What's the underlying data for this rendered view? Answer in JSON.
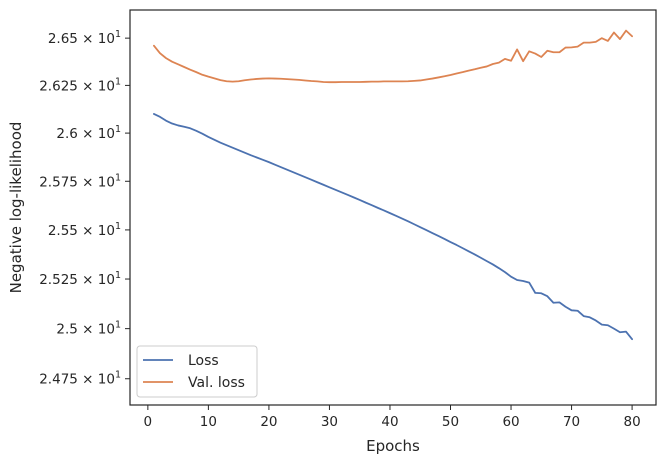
{
  "chart_data": {
    "type": "line",
    "xlabel": "Epochs",
    "ylabel": "Negative log-likelihood",
    "xlim": [
      -2.95,
      83.95
    ],
    "ylim": [
      24.62,
      26.65
    ],
    "y_scale": "log",
    "grid": false,
    "legend_position": "lower-left",
    "x_ticks": [
      0,
      10,
      20,
      30,
      40,
      50,
      60,
      70,
      80
    ],
    "y_ticks": [
      {
        "value": 24.75,
        "mantissa": "2.475"
      },
      {
        "value": 25.0,
        "mantissa": "2.5"
      },
      {
        "value": 25.25,
        "mantissa": "2.525"
      },
      {
        "value": 25.5,
        "mantissa": "2.55"
      },
      {
        "value": 25.75,
        "mantissa": "2.575"
      },
      {
        "value": 26.0,
        "mantissa": "2.6"
      },
      {
        "value": 26.25,
        "mantissa": "2.625"
      },
      {
        "value": 26.5,
        "mantissa": "2.65"
      }
    ],
    "y_tick_base": "× 10",
    "y_tick_exponent": "1",
    "x": [
      1,
      2,
      3,
      4,
      5,
      6,
      7,
      8,
      9,
      10,
      11,
      12,
      13,
      14,
      15,
      16,
      17,
      18,
      19,
      20,
      21,
      22,
      23,
      24,
      25,
      26,
      27,
      28,
      29,
      30,
      31,
      32,
      33,
      34,
      35,
      36,
      37,
      38,
      39,
      40,
      41,
      42,
      43,
      44,
      45,
      46,
      47,
      48,
      49,
      50,
      51,
      52,
      53,
      54,
      55,
      56,
      57,
      58,
      59,
      60,
      61,
      62,
      63,
      64,
      65,
      66,
      67,
      68,
      69,
      70,
      71,
      72,
      73,
      74,
      75,
      76,
      77,
      78,
      79,
      80
    ],
    "series": [
      {
        "name": "Loss",
        "color": "#4c72b0",
        "values": [
          26.1,
          26.085,
          26.065,
          26.05,
          26.04,
          26.033,
          26.025,
          26.012,
          25.997,
          25.98,
          25.965,
          25.95,
          25.937,
          25.924,
          25.911,
          25.898,
          25.885,
          25.873,
          25.861,
          25.849,
          25.836,
          25.823,
          25.81,
          25.797,
          25.784,
          25.771,
          25.758,
          25.745,
          25.732,
          25.719,
          25.706,
          25.693,
          25.68,
          25.667,
          25.654,
          25.64,
          25.627,
          25.613,
          25.6,
          25.586,
          25.572,
          25.558,
          25.544,
          25.529,
          25.514,
          25.499,
          25.484,
          25.469,
          25.454,
          25.438,
          25.423,
          25.407,
          25.391,
          25.375,
          25.358,
          25.341,
          25.324,
          25.305,
          25.285,
          25.262,
          25.245,
          25.24,
          25.232,
          25.18,
          25.178,
          25.163,
          25.13,
          25.132,
          25.11,
          25.092,
          25.09,
          25.063,
          25.057,
          25.041,
          25.02,
          25.017,
          25.0,
          24.982,
          24.985,
          24.947
        ]
      },
      {
        "name": "Val. loss",
        "color": "#dd8452",
        "values": [
          26.46,
          26.42,
          26.394,
          26.375,
          26.361,
          26.347,
          26.333,
          26.32,
          26.306,
          26.296,
          26.287,
          26.278,
          26.272,
          26.27,
          26.272,
          26.277,
          26.281,
          26.284,
          26.286,
          26.287,
          26.286,
          26.285,
          26.283,
          26.281,
          26.279,
          26.276,
          26.273,
          26.271,
          26.268,
          26.267,
          26.267,
          26.268,
          26.268,
          26.268,
          26.268,
          26.269,
          26.27,
          26.27,
          26.271,
          26.271,
          26.271,
          26.271,
          26.272,
          26.274,
          26.276,
          26.281,
          26.286,
          26.292,
          26.298,
          26.305,
          26.313,
          26.32,
          26.328,
          26.335,
          26.343,
          26.35,
          26.363,
          26.37,
          26.39,
          26.38,
          26.44,
          26.378,
          26.43,
          26.418,
          26.4,
          26.433,
          26.425,
          26.425,
          26.45,
          26.451,
          26.455,
          26.476,
          26.476,
          26.48,
          26.5,
          26.485,
          26.53,
          26.495,
          26.54,
          26.51
        ]
      }
    ]
  }
}
